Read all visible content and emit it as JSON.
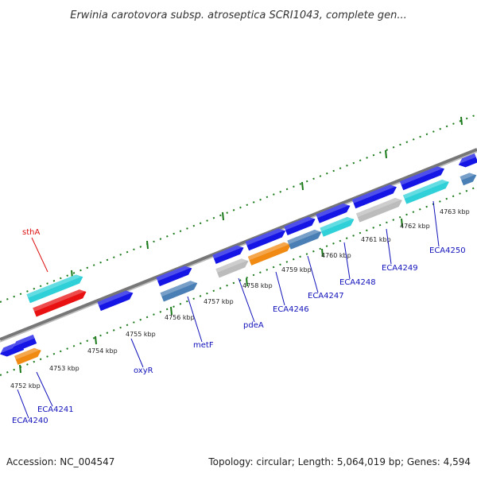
{
  "title": "Erwinia carotovora subsp. atroseptica SCRI1043, complete gen...",
  "footer": {
    "accession": "Accession: NC_004547",
    "stats": "Topology: circular; Length: 5,064,019 bp; Genes: 4,594"
  },
  "colors": {
    "blue": "#1515e6",
    "steel": "#4a7fb5",
    "cyan": "#2fd0d8",
    "gray": "#bcbcbc",
    "orange": "#f08a12",
    "red": "#e81010",
    "backbone": "#888888",
    "ticks": "#1a7a1a",
    "label_blue": "#1111bb",
    "label_red": "#dd1111"
  },
  "kbp_labels": [
    "4752 kbp",
    "4753 kbp",
    "4754 kbp",
    "4755 kbp",
    "4756 kbp",
    "4757 kbp",
    "4758 kbp",
    "4759 kbp",
    "4760 kbp",
    "4761 kbp",
    "4762 kbp",
    "4763 kbp"
  ],
  "gene_labels": [
    {
      "text": "sthA",
      "color": "red"
    },
    {
      "text": "ECA4240",
      "color": "blue"
    },
    {
      "text": "ECA4241",
      "color": "blue"
    },
    {
      "text": "oxyR",
      "color": "blue"
    },
    {
      "text": "metF",
      "color": "blue"
    },
    {
      "text": "pdeA",
      "color": "blue"
    },
    {
      "text": "ECA4246",
      "color": "blue"
    },
    {
      "text": "ECA4247",
      "color": "blue"
    },
    {
      "text": "ECA4248",
      "color": "blue"
    },
    {
      "text": "ECA4249",
      "color": "blue"
    },
    {
      "text": "ECA4250",
      "color": "blue"
    }
  ]
}
